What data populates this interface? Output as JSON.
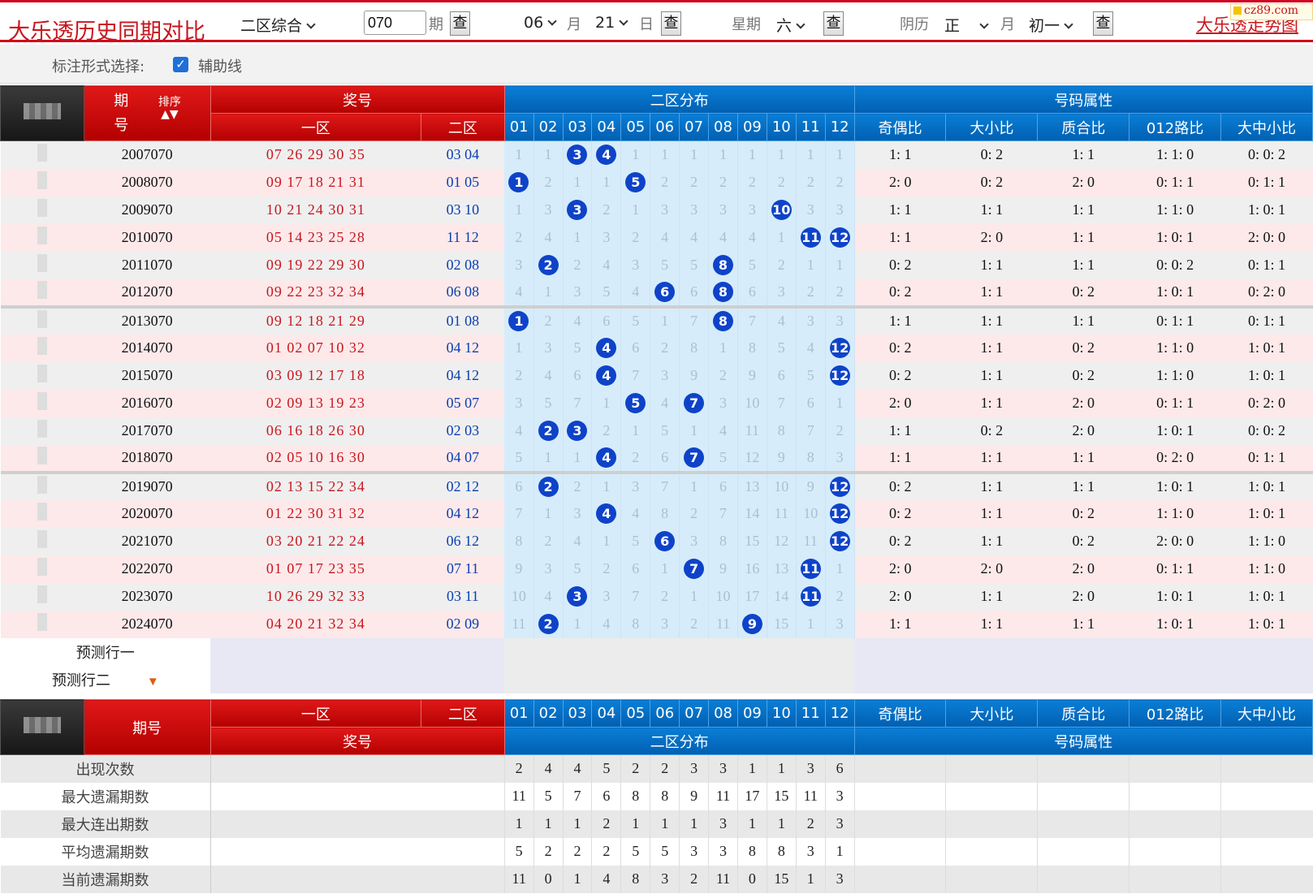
{
  "header": {
    "title": "大乐透历史同期对比",
    "mode_select": "二区综合",
    "period_input": "070",
    "period_label": "期",
    "query_label": "查",
    "month_select": "06",
    "month_label": "月",
    "day_select": "21",
    "day_label": "日",
    "week_label": "星期",
    "week_select": "六",
    "lunar_label": "阴历",
    "lunar_month_select": "正",
    "lunar_month_label": "月",
    "lunar_day_select": "初一",
    "chart_link": "大乐透走势图",
    "site_logo": "cz89.com"
  },
  "options": {
    "label": "标注形式选择:",
    "checkbox_checked": true,
    "checkbox_label": "辅助线"
  },
  "table": {
    "head": {
      "period": "期号",
      "sort": "排序",
      "prize": "奖号",
      "zone1": "一区",
      "zone2": "二区",
      "zone2_dist": "二区分布",
      "attributes": "号码属性",
      "numbers": [
        "01",
        "02",
        "03",
        "04",
        "05",
        "06",
        "07",
        "08",
        "09",
        "10",
        "11",
        "12"
      ],
      "attr_cols": [
        "奇偶比",
        "大小比",
        "质合比",
        "012路比",
        "大中小比"
      ]
    },
    "rows": [
      {
        "period": "2007070",
        "z1": "07 26 29 30 35",
        "z2": "03 04",
        "dist": [
          "1",
          "1",
          "3",
          "4",
          "1",
          "1",
          "1",
          "1",
          "1",
          "1",
          "1",
          "1"
        ],
        "hits": [
          3,
          4
        ],
        "attrs": [
          "1: 1",
          "0: 2",
          "1: 1",
          "1: 1: 0",
          "0: 0: 2"
        ]
      },
      {
        "period": "2008070",
        "z1": "09 17 18 21 31",
        "z2": "01 05",
        "dist": [
          "1",
          "2",
          "1",
          "1",
          "5",
          "2",
          "2",
          "2",
          "2",
          "2",
          "2",
          "2"
        ],
        "hits": [
          1,
          5
        ],
        "attrs": [
          "2: 0",
          "0: 2",
          "2: 0",
          "0: 1: 1",
          "0: 1: 1"
        ]
      },
      {
        "period": "2009070",
        "z1": "10 21 24 30 31",
        "z2": "03 10",
        "dist": [
          "1",
          "3",
          "3",
          "2",
          "1",
          "3",
          "3",
          "3",
          "3",
          "10",
          "3",
          "3"
        ],
        "hits": [
          3,
          10
        ],
        "attrs": [
          "1: 1",
          "1: 1",
          "1: 1",
          "1: 1: 0",
          "1: 0: 1"
        ]
      },
      {
        "period": "2010070",
        "z1": "05 14 23 25 28",
        "z2": "11 12",
        "dist": [
          "2",
          "4",
          "1",
          "3",
          "2",
          "4",
          "4",
          "4",
          "4",
          "1",
          "11",
          "12"
        ],
        "hits": [
          11,
          12
        ],
        "attrs": [
          "1: 1",
          "2: 0",
          "1: 1",
          "1: 0: 1",
          "2: 0: 0"
        ]
      },
      {
        "period": "2011070",
        "z1": "09 19 22 29 30",
        "z2": "02 08",
        "dist": [
          "3",
          "2",
          "2",
          "4",
          "3",
          "5",
          "5",
          "8",
          "5",
          "2",
          "1",
          "1"
        ],
        "hits": [
          2,
          8
        ],
        "attrs": [
          "0: 2",
          "1: 1",
          "1: 1",
          "0: 0: 2",
          "0: 1: 1"
        ]
      },
      {
        "period": "2012070",
        "z1": "09 22 23 32 34",
        "z2": "06 08",
        "dist": [
          "4",
          "1",
          "3",
          "5",
          "4",
          "6",
          "6",
          "8",
          "6",
          "3",
          "2",
          "2"
        ],
        "hits": [
          6,
          8
        ],
        "attrs": [
          "0: 2",
          "1: 1",
          "0: 2",
          "1: 0: 1",
          "0: 2: 0"
        ]
      },
      {
        "period": "2013070",
        "z1": "09 12 18 21 29",
        "z2": "01 08",
        "dist": [
          "1",
          "2",
          "4",
          "6",
          "5",
          "1",
          "7",
          "8",
          "7",
          "4",
          "3",
          "3"
        ],
        "hits": [
          1,
          8
        ],
        "attrs": [
          "1: 1",
          "1: 1",
          "1: 1",
          "0: 1: 1",
          "0: 1: 1"
        ]
      },
      {
        "period": "2014070",
        "z1": "01 02 07 10 32",
        "z2": "04 12",
        "dist": [
          "1",
          "3",
          "5",
          "4",
          "6",
          "2",
          "8",
          "1",
          "8",
          "5",
          "4",
          "12"
        ],
        "hits": [
          4,
          12
        ],
        "attrs": [
          "0: 2",
          "1: 1",
          "0: 2",
          "1: 1: 0",
          "1: 0: 1"
        ]
      },
      {
        "period": "2015070",
        "z1": "03 09 12 17 18",
        "z2": "04 12",
        "dist": [
          "2",
          "4",
          "6",
          "4",
          "7",
          "3",
          "9",
          "2",
          "9",
          "6",
          "5",
          "12"
        ],
        "hits": [
          4,
          12
        ],
        "attrs": [
          "0: 2",
          "1: 1",
          "0: 2",
          "1: 1: 0",
          "1: 0: 1"
        ]
      },
      {
        "period": "2016070",
        "z1": "02 09 13 19 23",
        "z2": "05 07",
        "dist": [
          "3",
          "5",
          "7",
          "1",
          "5",
          "4",
          "7",
          "3",
          "10",
          "7",
          "6",
          "1"
        ],
        "hits": [
          5,
          7
        ],
        "attrs": [
          "2: 0",
          "1: 1",
          "2: 0",
          "0: 1: 1",
          "0: 2: 0"
        ]
      },
      {
        "period": "2017070",
        "z1": "06 16 18 26 30",
        "z2": "02 03",
        "dist": [
          "4",
          "2",
          "3",
          "2",
          "1",
          "5",
          "1",
          "4",
          "11",
          "8",
          "7",
          "2"
        ],
        "hits": [
          2,
          3
        ],
        "attrs": [
          "1: 1",
          "0: 2",
          "2: 0",
          "1: 0: 1",
          "0: 0: 2"
        ]
      },
      {
        "period": "2018070",
        "z1": "02 05 10 16 30",
        "z2": "04 07",
        "dist": [
          "5",
          "1",
          "1",
          "4",
          "2",
          "6",
          "7",
          "5",
          "12",
          "9",
          "8",
          "3"
        ],
        "hits": [
          4,
          7
        ],
        "attrs": [
          "1: 1",
          "1: 1",
          "1: 1",
          "0: 2: 0",
          "0: 1: 1"
        ]
      },
      {
        "period": "2019070",
        "z1": "02 13 15 22 34",
        "z2": "02 12",
        "dist": [
          "6",
          "2",
          "2",
          "1",
          "3",
          "7",
          "1",
          "6",
          "13",
          "10",
          "9",
          "12"
        ],
        "hits": [
          2,
          12
        ],
        "attrs": [
          "0: 2",
          "1: 1",
          "1: 1",
          "1: 0: 1",
          "1: 0: 1"
        ]
      },
      {
        "period": "2020070",
        "z1": "01 22 30 31 32",
        "z2": "04 12",
        "dist": [
          "7",
          "1",
          "3",
          "4",
          "4",
          "8",
          "2",
          "7",
          "14",
          "11",
          "10",
          "12"
        ],
        "hits": [
          4,
          12
        ],
        "attrs": [
          "0: 2",
          "1: 1",
          "0: 2",
          "1: 1: 0",
          "1: 0: 1"
        ]
      },
      {
        "period": "2021070",
        "z1": "03 20 21 22 24",
        "z2": "06 12",
        "dist": [
          "8",
          "2",
          "4",
          "1",
          "5",
          "6",
          "3",
          "8",
          "15",
          "12",
          "11",
          "12"
        ],
        "hits": [
          6,
          12
        ],
        "attrs": [
          "0: 2",
          "1: 1",
          "0: 2",
          "2: 0: 0",
          "1: 1: 0"
        ]
      },
      {
        "period": "2022070",
        "z1": "01 07 17 23 35",
        "z2": "07 11",
        "dist": [
          "9",
          "3",
          "5",
          "2",
          "6",
          "1",
          "7",
          "9",
          "16",
          "13",
          "11",
          "1"
        ],
        "hits": [
          7,
          11
        ],
        "attrs": [
          "2: 0",
          "2: 0",
          "2: 0",
          "0: 1: 1",
          "1: 1: 0"
        ]
      },
      {
        "period": "2023070",
        "z1": "10 26 29 32 33",
        "z2": "03 11",
        "dist": [
          "10",
          "4",
          "3",
          "3",
          "7",
          "2",
          "1",
          "10",
          "17",
          "14",
          "11",
          "2"
        ],
        "hits": [
          3,
          11
        ],
        "attrs": [
          "2: 0",
          "1: 1",
          "2: 0",
          "1: 0: 1",
          "1: 0: 1"
        ]
      },
      {
        "period": "2024070",
        "z1": "04 20 21 32 34",
        "z2": "02 09",
        "dist": [
          "11",
          "2",
          "1",
          "4",
          "8",
          "3",
          "2",
          "11",
          "9",
          "15",
          "1",
          "3"
        ],
        "hits": [
          2,
          9
        ],
        "attrs": [
          "1: 1",
          "1: 1",
          "1: 1",
          "1: 0: 1",
          "1: 0: 1"
        ]
      }
    ],
    "predict": [
      "预测行一",
      "预测行二"
    ],
    "stats": [
      {
        "label": "出现次数",
        "values": [
          "2",
          "4",
          "4",
          "5",
          "2",
          "2",
          "3",
          "3",
          "1",
          "1",
          "3",
          "6"
        ]
      },
      {
        "label": "最大遗漏期数",
        "values": [
          "11",
          "5",
          "7",
          "6",
          "8",
          "8",
          "9",
          "11",
          "17",
          "15",
          "11",
          "3"
        ]
      },
      {
        "label": "最大连出期数",
        "values": [
          "1",
          "1",
          "1",
          "2",
          "1",
          "1",
          "1",
          "3",
          "1",
          "1",
          "2",
          "3"
        ]
      },
      {
        "label": "平均遗漏期数",
        "values": [
          "5",
          "2",
          "2",
          "2",
          "5",
          "5",
          "3",
          "3",
          "8",
          "8",
          "3",
          "1"
        ]
      },
      {
        "label": "当前遗漏期数",
        "values": [
          "11",
          "0",
          "1",
          "4",
          "8",
          "3",
          "2",
          "11",
          "0",
          "15",
          "1",
          "3"
        ]
      }
    ]
  }
}
